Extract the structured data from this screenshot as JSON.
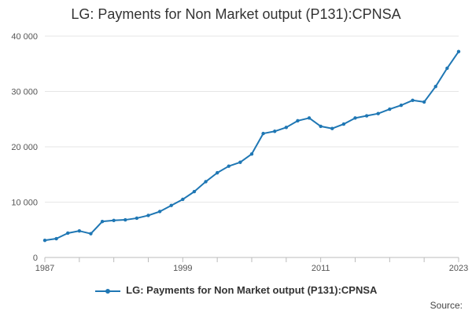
{
  "chart_data": {
    "type": "line",
    "title": "LG: Payments for Non Market output (P131):CPNSA",
    "xlabel": "",
    "ylabel": "",
    "x": [
      1987,
      1988,
      1989,
      1990,
      1991,
      1992,
      1993,
      1994,
      1995,
      1996,
      1997,
      1998,
      1999,
      2000,
      2001,
      2002,
      2003,
      2004,
      2005,
      2006,
      2007,
      2008,
      2009,
      2010,
      2011,
      2012,
      2013,
      2014,
      2015,
      2016,
      2017,
      2018,
      2019,
      2020,
      2021,
      2022,
      2023
    ],
    "series": [
      {
        "name": "LG: Payments for Non Market output (P131):CPNSA",
        "color": "#1f77b4",
        "values": [
          3100,
          3400,
          4400,
          4800,
          4300,
          6500,
          6700,
          6800,
          7100,
          7600,
          8300,
          9400,
          10500,
          11900,
          13700,
          15300,
          16500,
          17200,
          18700,
          22400,
          22800,
          23500,
          24700,
          25200,
          23700,
          23300,
          24100,
          25200,
          25600,
          26000,
          26800,
          27500,
          28400,
          28100,
          30900,
          34200,
          37200
        ]
      }
    ],
    "x_ticks": [
      "1987",
      "1999",
      "2011",
      "2023"
    ],
    "y_ticks": [
      "0",
      "10 000",
      "20 000",
      "30 000",
      "40 000"
    ],
    "y_tick_values": [
      0,
      10000,
      20000,
      30000,
      40000
    ],
    "xlim": [
      1987,
      2023
    ],
    "ylim": [
      0,
      40000
    ],
    "grid": "horizontal",
    "legend_position": "bottom"
  },
  "source_label": "Source:"
}
